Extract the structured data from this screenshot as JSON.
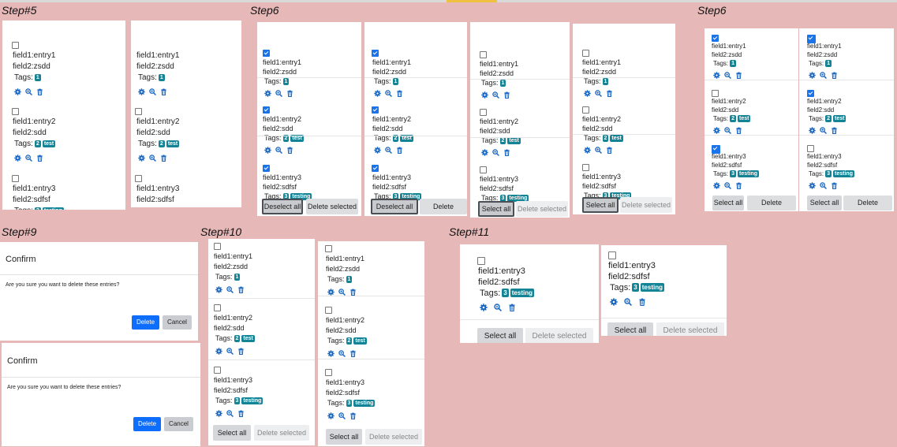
{
  "labels": {
    "step5": "Step#5",
    "step6a": "Step6",
    "step6b": "Step6",
    "step9": "Step#9",
    "step10": "Step#10",
    "step11": "Step#11"
  },
  "entries": [
    {
      "field1": "field1:entry1",
      "field2": "field2:zsdd",
      "tags_label": "Tags:",
      "count": "1",
      "tag": ""
    },
    {
      "field1": "field1:entry2",
      "field2": "field2:sdd",
      "tags_label": "Tags:",
      "count": "2",
      "tag": "test"
    },
    {
      "field1": "field1:entry3",
      "field2": "field2:sdfsf",
      "tags_label": "Tags:",
      "count": "3",
      "tag": "testing"
    }
  ],
  "buttons": {
    "select_all": "Select all",
    "deselect_all": "Deselect all",
    "delete_selected": "Delete selected"
  },
  "confirm": {
    "title": "Confirm",
    "message": "Are you sure you want to delete these entries?",
    "delete": "Delete",
    "cancel": "Cancel"
  },
  "icons": [
    "gear-icon",
    "search-icon",
    "trash-icon"
  ],
  "colors": {
    "background": "#e6b8b8",
    "badge": "#138496",
    "primary": "#0d6efd",
    "checked": "#1a73e8"
  }
}
